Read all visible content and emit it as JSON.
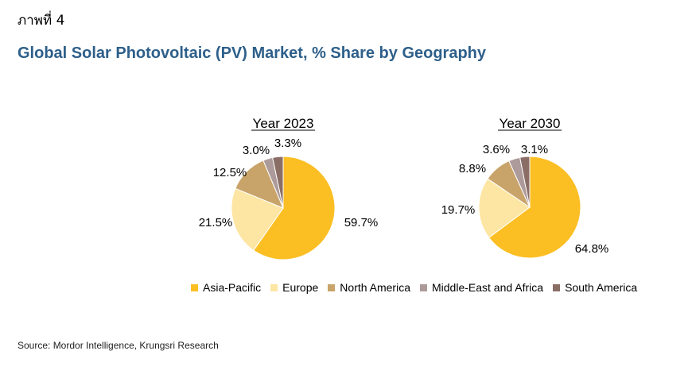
{
  "figure_label": "ภาพที่ 4",
  "title": "Global Solar Photovoltaic (PV) Market, % Share by Geography",
  "source": "Source: Mordor Intelligence, Krungsri Research",
  "colors": {
    "Asia-Pacific": "#fbbf24",
    "Europe": "#fde6a3",
    "North America": "#c9a46a",
    "Middle-East and Africa": "#ad9a9a",
    "South America": "#8a6e66"
  },
  "legend": [
    "Asia-Pacific",
    "Europe",
    "North America",
    "Middle-East and Africa",
    "South America"
  ],
  "chart_data": [
    {
      "type": "pie",
      "title": "Year 2023",
      "categories": [
        "Asia-Pacific",
        "Europe",
        "North America",
        "Middle-East and Africa",
        "South America"
      ],
      "values": [
        59.7,
        21.5,
        12.5,
        3.0,
        3.3
      ],
      "labels": [
        "59.7%",
        "21.5%",
        "12.5%",
        "3.0%",
        "3.3%"
      ],
      "legend": "bottom"
    },
    {
      "type": "pie",
      "title": "Year 2030",
      "categories": [
        "Asia-Pacific",
        "Europe",
        "North America",
        "Middle-East and Africa",
        "South America"
      ],
      "values": [
        64.8,
        19.7,
        8.8,
        3.6,
        3.1
      ],
      "labels": [
        "64.8%",
        "19.7%",
        "8.8%",
        "3.6%",
        "3.1%"
      ],
      "legend": "bottom"
    }
  ]
}
